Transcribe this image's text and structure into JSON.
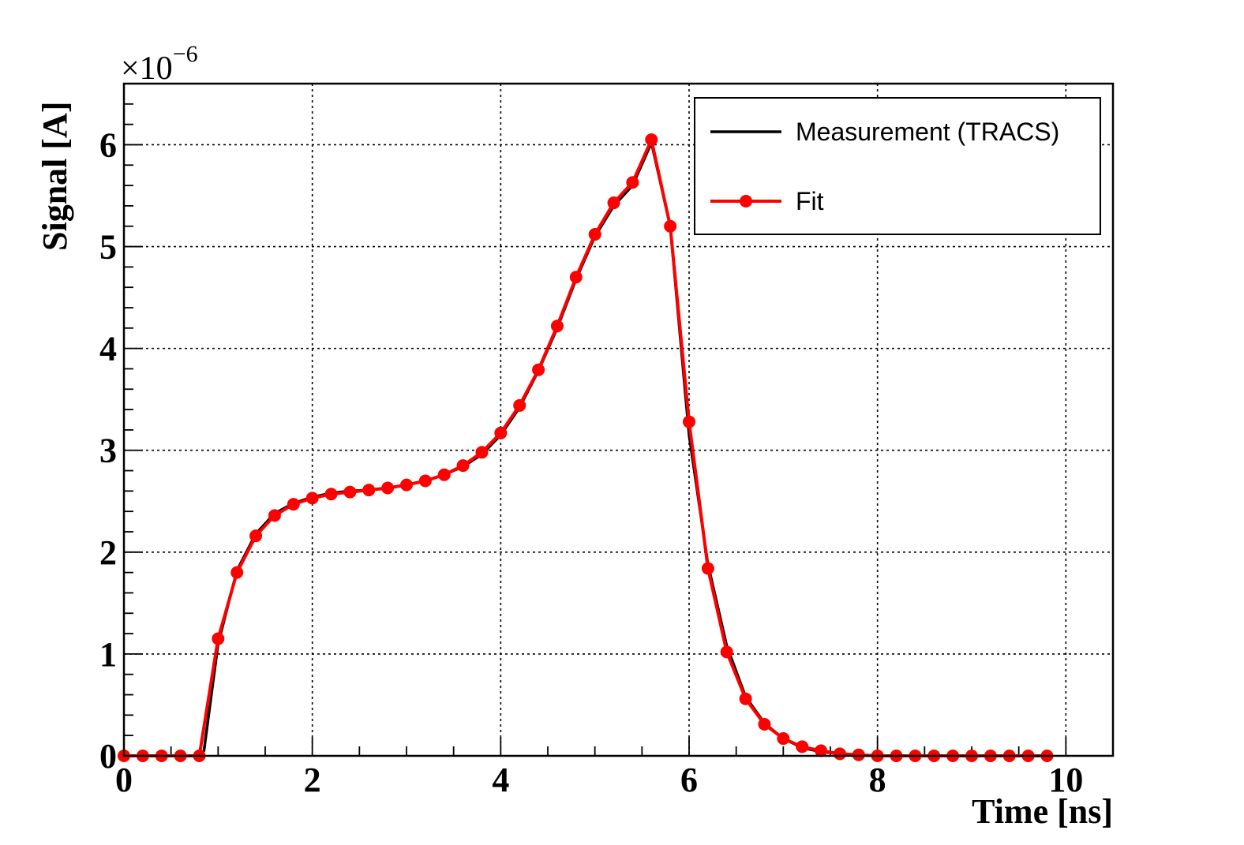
{
  "chart_data": {
    "type": "line",
    "xlabel": "Time [ns]",
    "ylabel": "Signal [A]",
    "y_multiplier": {
      "base": "×10",
      "exponent": "−6"
    },
    "xlim": [
      0,
      10.5
    ],
    "ylim": [
      0,
      6.6
    ],
    "x_ticks": [
      0,
      2,
      4,
      6,
      8,
      10
    ],
    "x_tick_labels": [
      "0",
      "2",
      "4",
      "6",
      "8",
      "10"
    ],
    "y_ticks": [
      0,
      1,
      2,
      3,
      4,
      5,
      6
    ],
    "y_tick_labels": [
      "0",
      "1",
      "2",
      "3",
      "4",
      "5",
      "6"
    ],
    "grid": true,
    "legend_position": "top-right",
    "colors": {
      "measurement": "#000000",
      "fit": "#ff0000"
    },
    "series": [
      {
        "name": "Measurement (TRACS)",
        "style": "line",
        "x": [
          0,
          0.2,
          0.4,
          0.6,
          0.8,
          0.85,
          1.0,
          1.2,
          1.4,
          1.6,
          1.8,
          2.0,
          2.2,
          2.4,
          2.6,
          2.8,
          3.0,
          3.2,
          3.4,
          3.6,
          3.8,
          4.0,
          4.2,
          4.4,
          4.6,
          4.8,
          5.0,
          5.2,
          5.4,
          5.6,
          5.8,
          6.0,
          6.2,
          6.4,
          6.6,
          6.8,
          7.0,
          7.2,
          7.4,
          7.6,
          7.8,
          8.0,
          9.0,
          9.8
        ],
        "values": [
          0,
          0,
          0,
          0,
          0,
          0.05,
          1.1,
          1.82,
          2.18,
          2.38,
          2.48,
          2.54,
          2.58,
          2.6,
          2.61,
          2.63,
          2.66,
          2.7,
          2.76,
          2.84,
          2.96,
          3.15,
          3.42,
          3.78,
          4.2,
          4.68,
          5.1,
          5.4,
          5.6,
          6.02,
          5.2,
          3.15,
          1.88,
          1.08,
          0.58,
          0.32,
          0.17,
          0.08,
          0.04,
          0.02,
          0.01,
          0.0,
          0.0,
          0.0
        ]
      },
      {
        "name": "Fit",
        "style": "line-markers",
        "x": [
          0,
          0.2,
          0.4,
          0.6,
          0.8,
          1.0,
          1.2,
          1.4,
          1.6,
          1.8,
          2.0,
          2.2,
          2.4,
          2.6,
          2.8,
          3.0,
          3.2,
          3.4,
          3.6,
          3.8,
          4.0,
          4.2,
          4.4,
          4.6,
          4.8,
          5.0,
          5.2,
          5.4,
          5.6,
          5.8,
          6.0,
          6.2,
          6.4,
          6.6,
          6.8,
          7.0,
          7.2,
          7.4,
          7.6,
          7.8,
          8.0,
          8.2,
          8.4,
          8.6,
          8.8,
          9.0,
          9.2,
          9.4,
          9.6,
          9.8
        ],
        "values": [
          0,
          0,
          0,
          0,
          0,
          1.15,
          1.8,
          2.16,
          2.36,
          2.47,
          2.53,
          2.57,
          2.59,
          2.61,
          2.63,
          2.66,
          2.7,
          2.76,
          2.85,
          2.98,
          3.17,
          3.44,
          3.79,
          4.22,
          4.7,
          5.12,
          5.43,
          5.63,
          6.05,
          5.2,
          3.28,
          1.84,
          1.02,
          0.56,
          0.31,
          0.17,
          0.09,
          0.05,
          0.02,
          0.01,
          0.0,
          0.0,
          0.0,
          0.0,
          0.0,
          0.0,
          0.0,
          0.0,
          0.0,
          0.0
        ]
      }
    ]
  }
}
